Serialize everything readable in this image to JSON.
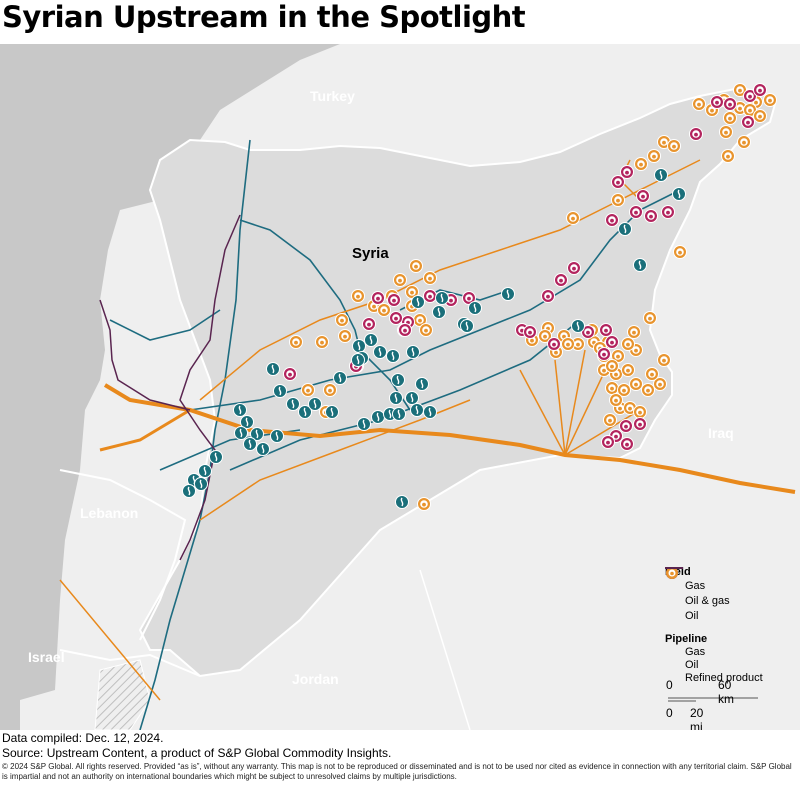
{
  "title": "Syrian Upstream in the Spotlight",
  "map_labels": {
    "turkey": "Turkey",
    "syria": "Syria",
    "iraq": "Iraq",
    "lebanon": "Lebanon",
    "israel": "Israel",
    "jordan": "Jordan"
  },
  "legend": {
    "field_heading": "Field",
    "field_items": [
      {
        "label": "Gas",
        "color": "#1a6f7a"
      },
      {
        "label": "Oil & gas",
        "color": "#b3245e"
      },
      {
        "label": "Oil",
        "color": "#e8942e"
      }
    ],
    "pipeline_heading": "Pipeline",
    "pipeline_items": [
      {
        "label": "Gas",
        "color": "#1e6c80"
      },
      {
        "label": "Oil",
        "color": "#e8891c"
      },
      {
        "label": "Refined product",
        "color": "#5a2550"
      }
    ]
  },
  "scale": {
    "km_zero": "0",
    "km_label": "60 km",
    "mi_zero": "0",
    "mi_label": "20 mi"
  },
  "footer": {
    "compiled": "Data compiled: Dec. 12, 2024.",
    "source": "Source: Upstream Content, a product of S&P Global Commodity Insights.",
    "copyright": "© 2024 S&P Global. All rights reserved. Provided “as is”, without any warranty. This map is not to be reproduced or disseminated and is not to be used nor cited as evidence in connection with any territorial claim. S&P Global is impartial and not an authority on international boundaries which might be subject to unresolved claims by multiple jurisdictions."
  },
  "colors": {
    "sea": "#c8c8c8",
    "neighbor_land": "#efefef",
    "syria_land": "#dcdcdc",
    "gas": "#1a6f7a",
    "oil_gas": "#b3245e",
    "oil": "#e8942e"
  }
}
